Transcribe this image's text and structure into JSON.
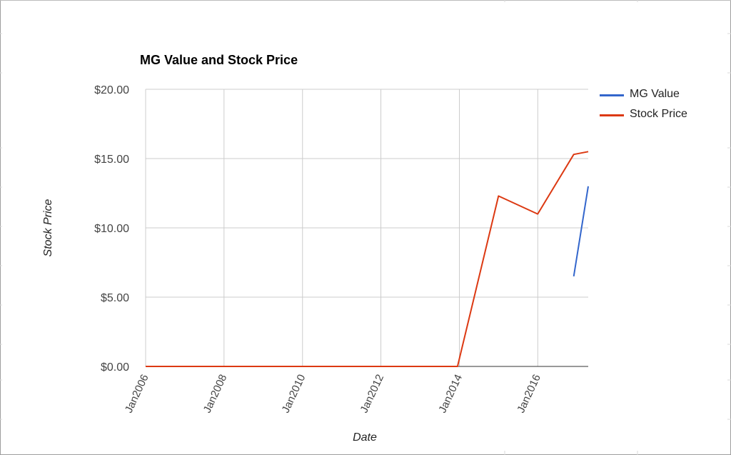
{
  "chart_data": {
    "type": "line",
    "title": "MG Value and Stock Price",
    "xlabel": "Date",
    "ylabel": "Stock Price",
    "x_axis": {
      "type": "date",
      "range": [
        "2006-01-01",
        "2017-04-15"
      ],
      "ticks": [
        {
          "date": "2006-01-01",
          "label": "Jan2006"
        },
        {
          "date": "2008-01-01",
          "label": "Jan2008"
        },
        {
          "date": "2010-01-01",
          "label": "Jan2010"
        },
        {
          "date": "2012-01-01",
          "label": "Jan2012"
        },
        {
          "date": "2014-01-01",
          "label": "Jan2014"
        },
        {
          "date": "2016-01-01",
          "label": "Jan2016"
        }
      ]
    },
    "y_axis": {
      "ylim": [
        0,
        20
      ],
      "ticks": [
        {
          "value": 0,
          "label": "$0.00"
        },
        {
          "value": 5,
          "label": "$5.00"
        },
        {
          "value": 10,
          "label": "$10.00"
        },
        {
          "value": 15,
          "label": "$15.00"
        },
        {
          "value": 20,
          "label": "$20.00"
        }
      ]
    },
    "grid": true,
    "legend_position": "right",
    "series": [
      {
        "name": "MG Value",
        "color": "#3366cc",
        "points": [
          {
            "x": "2016-12-01",
            "y": 6.5
          },
          {
            "x": "2017-04-15",
            "y": 13.0
          }
        ]
      },
      {
        "name": "Stock Price",
        "color": "#dc3912",
        "points": [
          {
            "x": "2006-01-01",
            "y": 0
          },
          {
            "x": "2013-12-15",
            "y": 0
          },
          {
            "x": "2014-12-31",
            "y": 12.3
          },
          {
            "x": "2015-12-31",
            "y": 11.0
          },
          {
            "x": "2016-12-01",
            "y": 15.3
          },
          {
            "x": "2017-04-15",
            "y": 15.5
          }
        ]
      }
    ]
  }
}
